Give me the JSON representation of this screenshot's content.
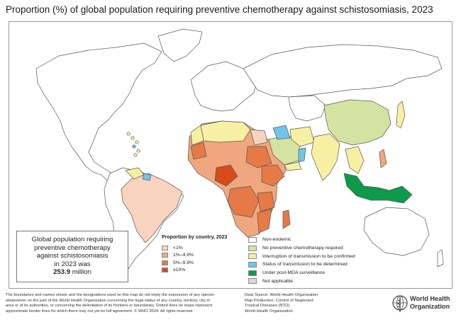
{
  "title": "Proportion (%) of global population requiring preventive chemotherapy against schistosomiasis, 2023",
  "infobox": {
    "line1": "Global population requiring",
    "line2": "preventive chemotherapy",
    "line3": "against schistosomiasis",
    "line4": "in 2023 was",
    "value": "253.9",
    "unit": " million"
  },
  "legend_proportion": {
    "title": "Proportion by country, 2023",
    "items": [
      {
        "label": "<1%",
        "color": "#f8d3bf"
      },
      {
        "label": "1%–4.9%",
        "color": "#f0a77f"
      },
      {
        "label": "5%–9.9%",
        "color": "#e57a46"
      },
      {
        "label": "≥10%",
        "color": "#d54b1a"
      }
    ]
  },
  "legend_status": {
    "items": [
      {
        "label": "Non-endemic",
        "color": "#ffffff"
      },
      {
        "label": "No preventive chemotherapy required",
        "color": "#d4e3a1"
      },
      {
        "label": "Interruption of transmission to be confirmed",
        "color": "#f7f0a3"
      },
      {
        "label": "Status of transmission to be determined",
        "color": "#71c5e8"
      },
      {
        "label": "Under post-MDA surveillance",
        "color": "#0e9a4a"
      },
      {
        "label": "Not applicable",
        "color": "#d9d9d9"
      }
    ]
  },
  "disclaimer": "The boundaries and names shown and the designations used on this map do not imply the expression of any opinion whatsoever on the part of the World Health Organization concerning the legal status of any country, territory, city or area or of its authorities, or concerning the delimitation of its frontiers or boundaries. Dotted lines on maps represent approximate border lines for which there may not yet be full agreement. © WHO 2024. All rights reserved",
  "source": {
    "line1": "Data Source: World Health Organization",
    "line2": "Map Production: Control of Neglected",
    "line3": "Tropical Diseases (NTD)",
    "line4": "World Health Organization"
  },
  "who_logo": {
    "line1": "World Health",
    "line2": "Organization"
  }
}
